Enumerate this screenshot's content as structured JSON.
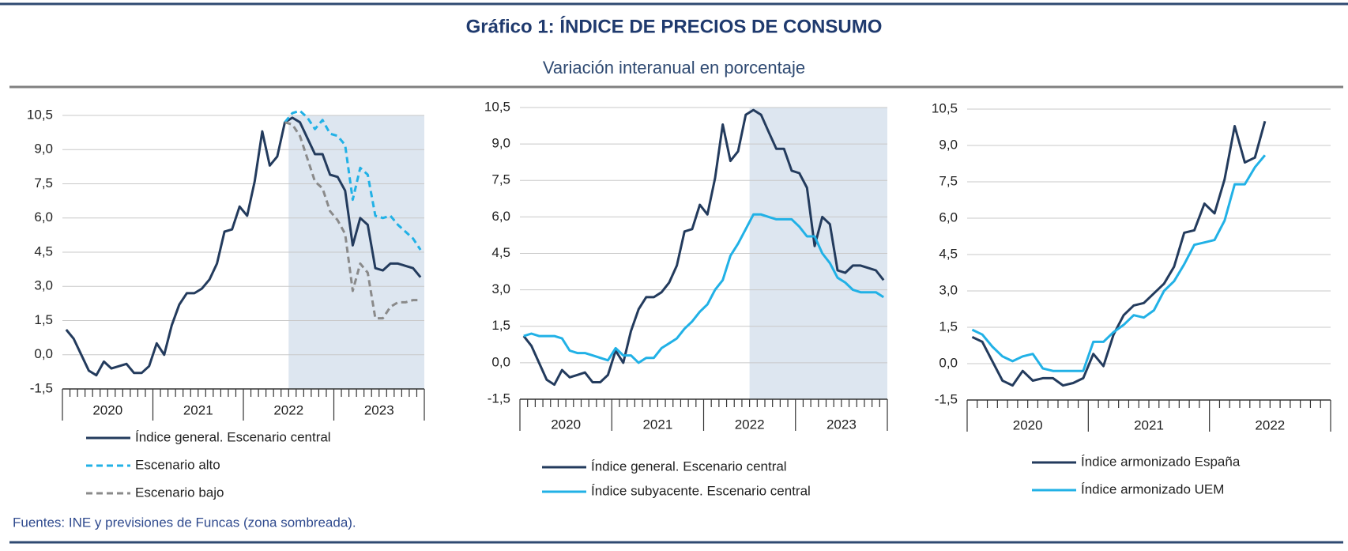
{
  "title": "Gráfico 1: ÍNDICE DE PRECIOS DE CONSUMO",
  "subtitle": "Variación interanual en porcentaje",
  "source": "Fuentes: INE y previsiones de Funcas (zona sombreada).",
  "chart_data": [
    {
      "type": "line",
      "years": [
        "2020",
        "2021",
        "2022",
        "2023"
      ],
      "ylim": [
        -1.5,
        10.5
      ],
      "yticks": [
        {
          "value": -1.5,
          "label": "-1,5"
        },
        {
          "value": 0,
          "label": "0,0"
        },
        {
          "value": 1.5,
          "label": "1,5"
        },
        {
          "value": 3,
          "label": "3,0"
        },
        {
          "value": 4.5,
          "label": "4,5"
        },
        {
          "value": 6,
          "label": "6,0"
        },
        {
          "value": 7.5,
          "label": "7,5"
        },
        {
          "value": 9,
          "label": "9,0"
        },
        {
          "value": 10.5,
          "label": "10,5"
        }
      ],
      "grid": true,
      "shaded_from": 30,
      "series": [
        {
          "name": "Índice general. Escenario central",
          "color": "#233b5d",
          "dashed": false,
          "values": [
            1.1,
            0.7,
            0.0,
            -0.7,
            -0.9,
            -0.3,
            -0.6,
            -0.5,
            -0.4,
            -0.8,
            -0.8,
            -0.5,
            0.5,
            0.0,
            1.3,
            2.2,
            2.7,
            2.7,
            2.9,
            3.3,
            4.0,
            5.4,
            5.5,
            6.5,
            6.1,
            7.6,
            9.8,
            8.3,
            8.7,
            10.2,
            10.4,
            10.2,
            9.5,
            8.8,
            8.8,
            7.9,
            7.8,
            7.2,
            4.8,
            6.0,
            5.7,
            3.8,
            3.7,
            4.0,
            4.0,
            3.9,
            3.8,
            3.4
          ]
        },
        {
          "name": "Escenario alto",
          "color": "#21b1e6",
          "dashed": true,
          "values": [
            null,
            null,
            null,
            null,
            null,
            null,
            null,
            null,
            null,
            null,
            null,
            null,
            null,
            null,
            null,
            null,
            null,
            null,
            null,
            null,
            null,
            null,
            null,
            null,
            null,
            null,
            null,
            null,
            null,
            10.2,
            10.6,
            10.7,
            10.4,
            9.9,
            10.3,
            9.7,
            9.6,
            9.2,
            6.8,
            8.2,
            7.9,
            6.1,
            6.0,
            6.1,
            5.7,
            5.4,
            5.1,
            4.6
          ]
        },
        {
          "name": "Escenario bajo",
          "color": "#8a8a8a",
          "dashed": true,
          "values": [
            null,
            null,
            null,
            null,
            null,
            null,
            null,
            null,
            null,
            null,
            null,
            null,
            null,
            null,
            null,
            null,
            null,
            null,
            null,
            null,
            null,
            null,
            null,
            null,
            null,
            null,
            null,
            null,
            null,
            10.2,
            10.1,
            9.6,
            8.6,
            7.6,
            7.3,
            6.3,
            5.9,
            5.3,
            2.8,
            4.0,
            3.6,
            1.6,
            1.6,
            2.1,
            2.3,
            2.3,
            2.4,
            2.4
          ]
        }
      ]
    },
    {
      "type": "line",
      "years": [
        "2020",
        "2021",
        "2022",
        "2023"
      ],
      "ylim": [
        -1.5,
        10.5
      ],
      "yticks": [
        {
          "value": -1.5,
          "label": "-1,5"
        },
        {
          "value": 0,
          "label": "0,0"
        },
        {
          "value": 1.5,
          "label": "1,5"
        },
        {
          "value": 3,
          "label": "3,0"
        },
        {
          "value": 4.5,
          "label": "4,5"
        },
        {
          "value": 6,
          "label": "6,0"
        },
        {
          "value": 7.5,
          "label": "7,5"
        },
        {
          "value": 9,
          "label": "9,0"
        },
        {
          "value": 10.5,
          "label": "10,5"
        }
      ],
      "grid": true,
      "shaded_from": 30,
      "series": [
        {
          "name": "Índice general. Escenario central",
          "color": "#233b5d",
          "dashed": false,
          "values": [
            1.1,
            0.7,
            0.0,
            -0.7,
            -0.9,
            -0.3,
            -0.6,
            -0.5,
            -0.4,
            -0.8,
            -0.8,
            -0.5,
            0.5,
            0.0,
            1.3,
            2.2,
            2.7,
            2.7,
            2.9,
            3.3,
            4.0,
            5.4,
            5.5,
            6.5,
            6.1,
            7.6,
            9.8,
            8.3,
            8.7,
            10.2,
            10.4,
            10.2,
            9.5,
            8.8,
            8.8,
            7.9,
            7.8,
            7.2,
            4.8,
            6.0,
            5.7,
            3.8,
            3.7,
            4.0,
            4.0,
            3.9,
            3.8,
            3.4
          ]
        },
        {
          "name": "Índice subyacente. Escenario central",
          "color": "#21b1e6",
          "dashed": false,
          "values": [
            1.1,
            1.2,
            1.1,
            1.1,
            1.1,
            1.0,
            0.5,
            0.4,
            0.4,
            0.3,
            0.2,
            0.1,
            0.6,
            0.3,
            0.3,
            0.0,
            0.2,
            0.2,
            0.6,
            0.8,
            1.0,
            1.4,
            1.7,
            2.1,
            2.4,
            3.0,
            3.4,
            4.4,
            4.9,
            5.5,
            6.1,
            6.1,
            6.0,
            5.9,
            5.9,
            5.9,
            5.6,
            5.2,
            5.2,
            4.5,
            4.1,
            3.5,
            3.3,
            3.0,
            2.9,
            2.9,
            2.9,
            2.7
          ]
        }
      ]
    },
    {
      "type": "line",
      "years": [
        "2020",
        "2021",
        "2022"
      ],
      "ylim": [
        -1.5,
        10.5
      ],
      "yticks": [
        {
          "value": -1.5,
          "label": "-1,5"
        },
        {
          "value": 0,
          "label": "0,0"
        },
        {
          "value": 1.5,
          "label": "1,5"
        },
        {
          "value": 3,
          "label": "3,0"
        },
        {
          "value": 4.5,
          "label": "4,5"
        },
        {
          "value": 6,
          "label": "6,0"
        },
        {
          "value": 7.5,
          "label": "7,5"
        },
        {
          "value": 9,
          "label": "9,0"
        },
        {
          "value": 10.5,
          "label": "10,5"
        }
      ],
      "grid": true,
      "series": [
        {
          "name": "Índice armonizado España",
          "color": "#233b5d",
          "dashed": false,
          "values": [
            1.1,
            0.9,
            0.1,
            -0.7,
            -0.9,
            -0.3,
            -0.7,
            -0.6,
            -0.6,
            -0.9,
            -0.8,
            -0.6,
            0.4,
            -0.1,
            1.2,
            2.0,
            2.4,
            2.5,
            2.9,
            3.3,
            4.0,
            5.4,
            5.5,
            6.6,
            6.2,
            7.6,
            9.8,
            8.3,
            8.5,
            10.0
          ]
        },
        {
          "name": "Índice armonizado UEM",
          "color": "#21b1e6",
          "dashed": false,
          "values": [
            1.4,
            1.2,
            0.7,
            0.3,
            0.1,
            0.3,
            0.4,
            -0.2,
            -0.3,
            -0.3,
            -0.3,
            -0.3,
            0.9,
            0.9,
            1.3,
            1.6,
            2.0,
            1.9,
            2.2,
            3.0,
            3.4,
            4.1,
            4.9,
            5.0,
            5.1,
            5.9,
            7.4,
            7.4,
            8.1,
            8.6
          ]
        }
      ]
    }
  ]
}
